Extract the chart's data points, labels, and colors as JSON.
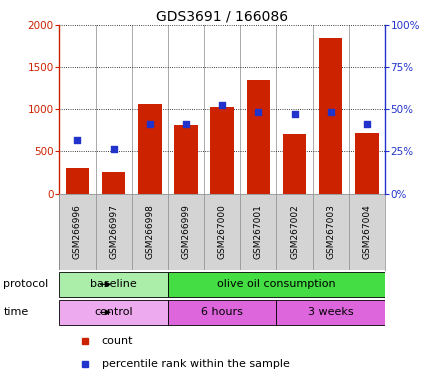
{
  "title": "GDS3691 / 166086",
  "samples": [
    "GSM266996",
    "GSM266997",
    "GSM266998",
    "GSM266999",
    "GSM267000",
    "GSM267001",
    "GSM267002",
    "GSM267003",
    "GSM267004"
  ],
  "counts": [
    300,
    250,
    1060,
    810,
    1020,
    1340,
    700,
    1840,
    720
  ],
  "pct_ranks": [
    31.5,
    26.5,
    41.0,
    41.0,
    52.5,
    48.5,
    47.0,
    48.0,
    41.0
  ],
  "ylim_left": [
    0,
    2000
  ],
  "ylim_right": [
    0,
    100
  ],
  "yticks_left": [
    0,
    500,
    1000,
    1500,
    2000
  ],
  "ytick_labels_left": [
    "0",
    "500",
    "1000",
    "1500",
    "2000"
  ],
  "yticks_right": [
    0,
    25,
    50,
    75,
    100
  ],
  "ytick_labels_right": [
    "0%",
    "25%",
    "50%",
    "75%",
    "100%"
  ],
  "bar_color": "#cc2200",
  "dot_color": "#2233cc",
  "protocol_groups": [
    {
      "label": "baseline",
      "start": 0,
      "end": 3,
      "color": "#aaeeaa"
    },
    {
      "label": "olive oil consumption",
      "start": 3,
      "end": 9,
      "color": "#44dd44"
    }
  ],
  "time_groups": [
    {
      "label": "control",
      "start": 0,
      "end": 3,
      "color": "#eeaaee"
    },
    {
      "label": "6 hours",
      "start": 3,
      "end": 6,
      "color": "#dd66dd"
    },
    {
      "label": "3 weeks",
      "start": 6,
      "end": 9,
      "color": "#dd66dd"
    }
  ],
  "legend_count_label": "count",
  "legend_pct_label": "percentile rank within the sample",
  "cell_bg": "#d4d4d4",
  "cell_border": "#888888",
  "left_axis_color": "#cc2200",
  "right_axis_color": "#2233cc"
}
